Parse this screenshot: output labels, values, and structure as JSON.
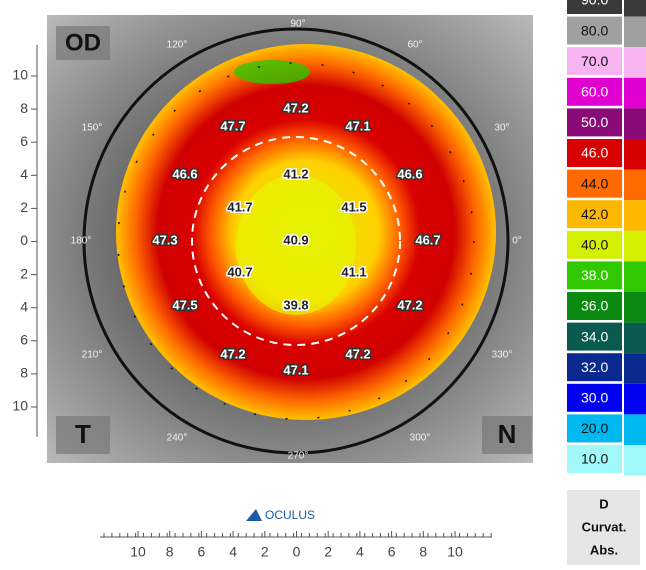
{
  "eye": "OD",
  "corners": {
    "temporal": "T",
    "nasal": "N"
  },
  "angles": [
    "90°",
    "120°",
    "60°",
    "150°",
    "30°",
    "180°",
    "0°",
    "210°",
    "330°",
    "240°",
    "300°",
    "270°"
  ],
  "axis_left": [
    "10",
    "8",
    "6",
    "4",
    "2",
    "0",
    "2",
    "4",
    "6",
    "8",
    "10"
  ],
  "axis_bottom": [
    "10",
    "8",
    "6",
    "4",
    "2",
    "0",
    "2",
    "4",
    "6",
    "8",
    "10"
  ],
  "readings": [
    "47.2",
    "47.7",
    "47.1",
    "46.6",
    "41.2",
    "46.6",
    "41.7",
    "41.5",
    "47.3",
    "40.9",
    "46.7",
    "40.7",
    "41.1",
    "47.5",
    "39.8",
    "47.2",
    "47.2",
    "47.2",
    "47.1"
  ],
  "scale": [
    {
      "label": "90.0",
      "color": "#3a3a3a"
    },
    {
      "label": "80.0",
      "color": "#a0a0a0"
    },
    {
      "label": "70.0",
      "color": "#f8b4f0"
    },
    {
      "label": "60.0",
      "color": "#e000d0"
    },
    {
      "label": "50.0",
      "color": "#8a0a78"
    },
    {
      "label": "46.0",
      "color": "#d80000"
    },
    {
      "label": "44.0",
      "color": "#ff6a00"
    },
    {
      "label": "42.0",
      "color": "#ffb800"
    },
    {
      "label": "40.0",
      "color": "#d4f000"
    },
    {
      "label": "38.0",
      "color": "#30c800"
    },
    {
      "label": "36.0",
      "color": "#0a8a10"
    },
    {
      "label": "34.0",
      "color": "#0a5a50"
    },
    {
      "label": "32.0",
      "color": "#0a2a90"
    },
    {
      "label": "30.0",
      "color": "#0000f0"
    },
    {
      "label": "20.0",
      "color": "#00b8f0"
    },
    {
      "label": "10.0",
      "color": "#a0f8f8"
    }
  ],
  "unit": [
    "D",
    "Curvat.",
    "Abs."
  ],
  "logo": "OCULUS"
}
